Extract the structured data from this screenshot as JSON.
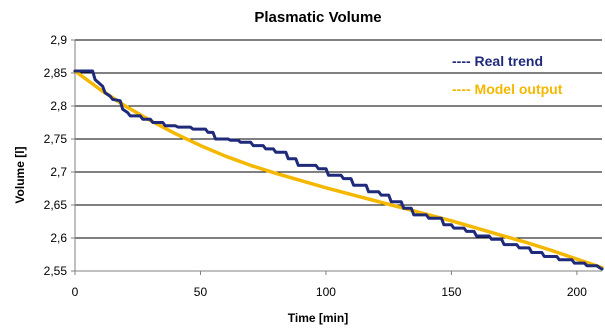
{
  "chart_data": {
    "type": "line",
    "title": "Plasmatic Volume",
    "xlabel": "Time [min]",
    "ylabel": "Volume [l]",
    "xlim": [
      0,
      210
    ],
    "ylim": [
      2.55,
      2.9
    ],
    "x_ticks": [
      0,
      50,
      100,
      150,
      200
    ],
    "x_tick_labels": [
      "0",
      "50",
      "100",
      "150",
      "200"
    ],
    "y_ticks": [
      2.55,
      2.6,
      2.65,
      2.7,
      2.75,
      2.8,
      2.85,
      2.9
    ],
    "y_tick_labels": [
      "2,55",
      "2,6",
      "2,65",
      "2,7",
      "2,75",
      "2,8",
      "2,85",
      "2,9"
    ],
    "grid": "horizontal",
    "legend_position": "top-right",
    "series": [
      {
        "name": "Real trend",
        "legend_label": "---- Real trend",
        "color": "#1f2a7a",
        "x": [
          0,
          7,
          8,
          11,
          12,
          14,
          15,
          18,
          19,
          21,
          22,
          26,
          27,
          30,
          31,
          35,
          36,
          40,
          41,
          46,
          47,
          52,
          53,
          55,
          56,
          61,
          62,
          65,
          66,
          70,
          71,
          75,
          76,
          79,
          80,
          84,
          85,
          88,
          89,
          96,
          97,
          100,
          101,
          106,
          107,
          110,
          111,
          116,
          117,
          121,
          122,
          125,
          126,
          130,
          131,
          134,
          135,
          140,
          141,
          146,
          147,
          150,
          151,
          155,
          156,
          159,
          160,
          165,
          166,
          170,
          171,
          176,
          177,
          181,
          182,
          186,
          187,
          192,
          193,
          198,
          199,
          203,
          204,
          208,
          209,
          210
        ],
        "y": [
          2.853,
          2.853,
          2.84,
          2.83,
          2.82,
          2.815,
          2.81,
          2.808,
          2.795,
          2.79,
          2.785,
          2.785,
          2.78,
          2.78,
          2.775,
          2.775,
          2.77,
          2.77,
          2.768,
          2.768,
          2.765,
          2.765,
          2.76,
          2.76,
          2.75,
          2.75,
          2.748,
          2.748,
          2.745,
          2.745,
          2.74,
          2.74,
          2.735,
          2.735,
          2.73,
          2.73,
          2.72,
          2.72,
          2.71,
          2.71,
          2.705,
          2.705,
          2.695,
          2.695,
          2.69,
          2.69,
          2.68,
          2.68,
          2.67,
          2.67,
          2.665,
          2.665,
          2.655,
          2.655,
          2.645,
          2.645,
          2.635,
          2.635,
          2.63,
          2.63,
          2.62,
          2.62,
          2.615,
          2.615,
          2.61,
          2.61,
          2.603,
          2.603,
          2.598,
          2.598,
          2.59,
          2.59,
          2.585,
          2.585,
          2.578,
          2.578,
          2.572,
          2.572,
          2.567,
          2.567,
          2.562,
          2.562,
          2.558,
          2.558,
          2.555,
          2.553
        ]
      },
      {
        "name": "Model output",
        "legend_label": "---- Model output",
        "color": "#f5b800",
        "x": [
          0,
          10,
          20,
          30,
          40,
          50,
          60,
          70,
          80,
          90,
          100,
          110,
          120,
          130,
          140,
          150,
          160,
          170,
          180,
          190,
          200,
          210
        ],
        "y": [
          2.853,
          2.825,
          2.8,
          2.778,
          2.758,
          2.74,
          2.724,
          2.71,
          2.698,
          2.687,
          2.676,
          2.666,
          2.656,
          2.646,
          2.636,
          2.626,
          2.615,
          2.604,
          2.593,
          2.581,
          2.568,
          2.555
        ]
      }
    ]
  }
}
